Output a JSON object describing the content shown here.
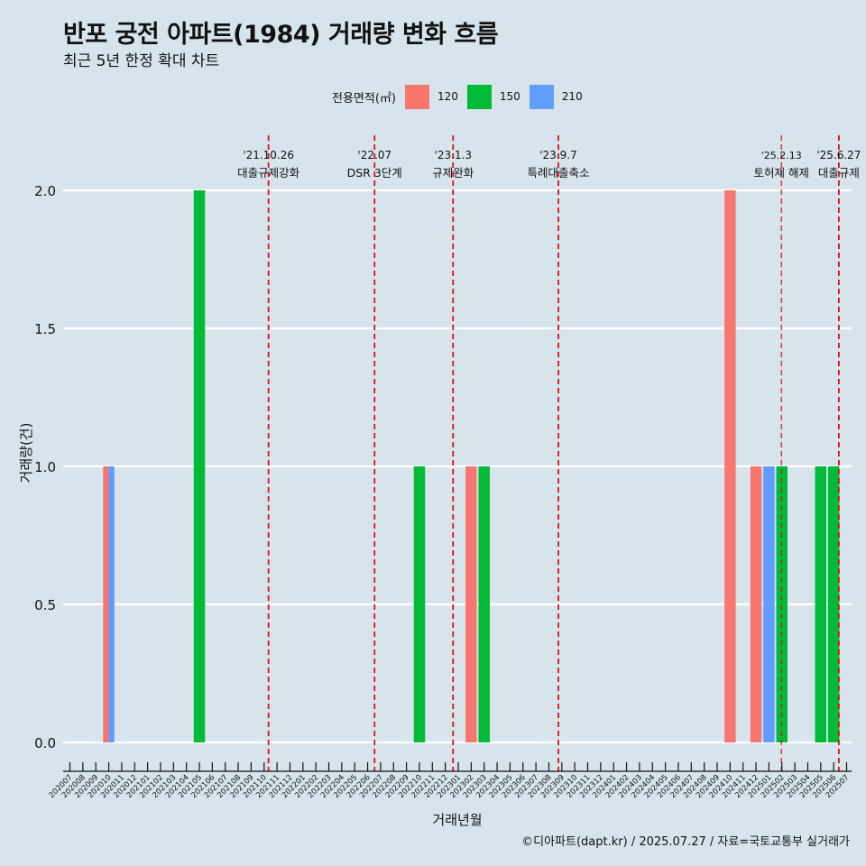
{
  "title": "반포 궁전 아파트(1984) 거래량 변화 흐름",
  "subtitle": "최근 5년 한정 확대 차트",
  "caption": "©디아파트(dapt.kr) / 2025.07.27 / 자료=국토교통부 실거래가",
  "chart_data": {
    "type": "bar",
    "xlabel": "거래년월",
    "ylabel": "거래량(건)",
    "ylim": [
      0,
      2
    ],
    "y_ticks": [
      0.0,
      0.5,
      1.0,
      1.5,
      2.0
    ],
    "y_tick_labels": [
      "0.0",
      "0.5",
      "1.0",
      "1.5",
      "2.0"
    ],
    "grid": true,
    "legend_title": "전용면적(㎡)",
    "legend_position": "top",
    "categories": [
      "202007",
      "202008",
      "202009",
      "202010",
      "202011",
      "202012",
      "202101",
      "202102",
      "202103",
      "202104",
      "202105",
      "202106",
      "202107",
      "202108",
      "202109",
      "202110",
      "202111",
      "202112",
      "202201",
      "202202",
      "202203",
      "202204",
      "202205",
      "202206",
      "202207",
      "202208",
      "202209",
      "202210",
      "202211",
      "202212",
      "202301",
      "202302",
      "202303",
      "202304",
      "202305",
      "202306",
      "202307",
      "202308",
      "202309",
      "202310",
      "202311",
      "202312",
      "202401",
      "202402",
      "202403",
      "202404",
      "202405",
      "202406",
      "202407",
      "202408",
      "202409",
      "202410",
      "202411",
      "202412",
      "202501",
      "202502",
      "202503",
      "202504",
      "202505",
      "202506",
      "202507"
    ],
    "series": [
      {
        "name": "120",
        "color": "#f8766d",
        "values": [
          [
            "202010",
            1
          ],
          [
            "202302",
            1
          ],
          [
            "202410",
            2
          ],
          [
            "202412",
            1
          ]
        ]
      },
      {
        "name": "150",
        "color": "#00ba38",
        "values": [
          [
            "202105",
            2
          ],
          [
            "202210",
            1
          ],
          [
            "202303",
            1
          ],
          [
            "202502",
            1
          ],
          [
            "202505",
            1
          ],
          [
            "202506",
            1
          ]
        ]
      },
      {
        "name": "210",
        "color": "#619cff",
        "values": [
          [
            "202010",
            1
          ],
          [
            "202501",
            1
          ]
        ]
      }
    ],
    "bars": [
      {
        "category": "202010",
        "area": "120",
        "value": 1
      },
      {
        "category": "202010",
        "area": "210",
        "value": 1
      },
      {
        "category": "202105",
        "area": "150",
        "value": 2
      },
      {
        "category": "202210",
        "area": "150",
        "value": 1
      },
      {
        "category": "202302",
        "area": "120",
        "value": 1
      },
      {
        "category": "202303",
        "area": "150",
        "value": 1
      },
      {
        "category": "202410",
        "area": "120",
        "value": 2
      },
      {
        "category": "202412",
        "area": "120",
        "value": 1
      },
      {
        "category": "202501",
        "area": "210",
        "value": 1
      },
      {
        "category": "202502",
        "area": "150",
        "value": 1
      },
      {
        "category": "202505",
        "area": "150",
        "value": 1
      },
      {
        "category": "202506",
        "area": "150",
        "value": 1
      }
    ],
    "annotations": [
      {
        "date": "2021-10-26",
        "line1": "'21.10.26",
        "line2": "대출규제강화"
      },
      {
        "date": "2022-07-01",
        "line1": "'22.07",
        "line2": "DSR 3단계"
      },
      {
        "date": "2023-01-03",
        "line1": "'23.1.3",
        "line2": "규제완화"
      },
      {
        "date": "2023-09-07",
        "line1": "'23.9.7",
        "line2": "특례대출축소"
      },
      {
        "date": "2025-02-13",
        "line1": "'25.2.13",
        "line2": "토허제 해제"
      },
      {
        "date": "2025-06-27",
        "line1": "'25.6.27",
        "line2": "대출규제"
      }
    ]
  }
}
